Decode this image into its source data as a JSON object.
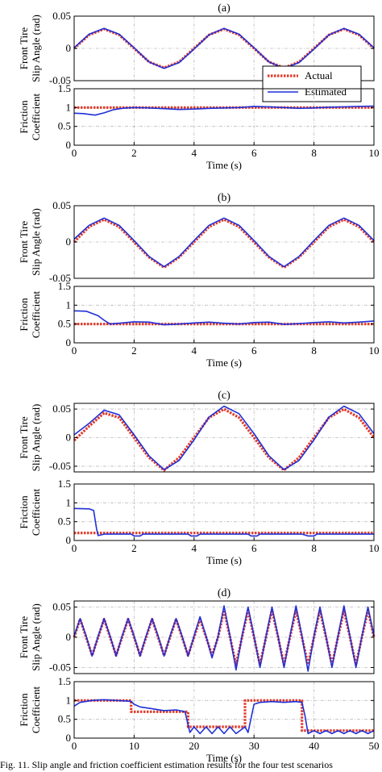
{
  "caption": "Fig. 11. Slip angle and friction coefficient estimation results for the four test scenarios",
  "colors": {
    "actual": "#e03c2c",
    "estimated": "#1f2fd8",
    "grid": "#bdbdbd"
  },
  "chart_data": [
    {
      "id": "a",
      "type": "line",
      "title": "(a)",
      "ylabel": [
        "Front Tire",
        "Slip Angle (rad)"
      ],
      "xlim": [
        0,
        10
      ],
      "ylim": [
        -0.05,
        0.05
      ],
      "yticks": [
        0.05,
        0,
        -0.05
      ],
      "yticklabels": [
        "0.05",
        "0",
        "-0.05"
      ],
      "legend": {
        "position": "bottom-right",
        "entries": [
          "Actual",
          "Estimated"
        ]
      },
      "series": [
        {
          "name": "Actual",
          "x": [
            0,
            0.5,
            1,
            1.5,
            2,
            2.5,
            3,
            3.5,
            4,
            4.5,
            5,
            5.5,
            6,
            6.5,
            7,
            7.5,
            8,
            8.5,
            9,
            9.5,
            10
          ],
          "y": [
            0,
            0.021,
            0.03,
            0.021,
            0,
            -0.021,
            -0.03,
            -0.021,
            0,
            0.021,
            0.03,
            0.021,
            0,
            -0.021,
            -0.03,
            -0.021,
            0,
            0.021,
            0.03,
            0.021,
            0
          ]
        },
        {
          "name": "Estimated",
          "x": [
            0,
            0.5,
            1,
            1.5,
            2,
            2.5,
            3,
            3.5,
            4,
            4.5,
            5,
            5.5,
            6,
            6.5,
            7,
            7.5,
            8,
            8.5,
            9,
            9.5,
            10
          ],
          "y": [
            0.001,
            0.022,
            0.031,
            0.022,
            0.001,
            -0.021,
            -0.031,
            -0.022,
            -0.001,
            0.021,
            0.031,
            0.022,
            0.001,
            -0.021,
            -0.031,
            -0.022,
            -0.001,
            0.021,
            0.031,
            0.022,
            0.001
          ]
        }
      ]
    },
    {
      "id": "a2",
      "type": "line",
      "ylabel": [
        "Friction",
        "Coefficient"
      ],
      "xlabel": "Time (s)",
      "xlim": [
        0,
        10
      ],
      "ylim": [
        0,
        1.5
      ],
      "yticks": [
        1.5,
        1,
        0.5,
        0
      ],
      "yticklabels": [
        "1.5",
        "1",
        "0.5",
        "0"
      ],
      "xticks": [
        0,
        2,
        4,
        6,
        8,
        10
      ],
      "xticklabels": [
        "0",
        "2",
        "4",
        "6",
        "8",
        "10"
      ],
      "series": [
        {
          "name": "Actual",
          "x": [
            0,
            10
          ],
          "y": [
            1,
            1
          ]
        },
        {
          "name": "Estimated",
          "x": [
            0,
            0.3,
            0.7,
            1,
            1.3,
            1.6,
            2,
            2.5,
            3,
            3.5,
            4,
            4.5,
            5,
            5.5,
            6,
            6.5,
            7,
            7.5,
            8,
            8.5,
            9,
            9.5,
            10
          ],
          "y": [
            0.85,
            0.84,
            0.8,
            0.86,
            0.94,
            0.98,
            1.0,
            0.99,
            0.97,
            0.95,
            0.96,
            0.98,
            0.99,
            1.0,
            1.03,
            1.02,
            1.0,
            0.98,
            0.99,
            1.01,
            1.02,
            1.03,
            1.04
          ]
        }
      ]
    },
    {
      "id": "b",
      "type": "line",
      "title": "(b)",
      "ylabel": [
        "Front Tire",
        "Slip Angle (rad)"
      ],
      "xlim": [
        0,
        10
      ],
      "ylim": [
        -0.05,
        0.05
      ],
      "yticks": [
        0.05,
        0,
        -0.05
      ],
      "yticklabels": [
        "0.05",
        "0",
        "-0.05"
      ],
      "series": [
        {
          "name": "Actual",
          "x": [
            0,
            0.5,
            1,
            1.5,
            2,
            2.5,
            3,
            3.5,
            4,
            4.5,
            5,
            5.5,
            6,
            6.5,
            7,
            7.5,
            8,
            8.5,
            9,
            9.5,
            10
          ],
          "y": [
            0,
            0.021,
            0.031,
            0.021,
            0,
            -0.021,
            -0.035,
            -0.021,
            0,
            0.021,
            0.031,
            0.021,
            0,
            -0.021,
            -0.035,
            -0.021,
            0,
            0.021,
            0.031,
            0.021,
            0
          ]
        },
        {
          "name": "Estimated",
          "x": [
            0,
            0.5,
            1,
            1.5,
            2,
            2.5,
            3,
            3.5,
            4,
            4.5,
            5,
            5.5,
            6,
            6.5,
            7,
            7.5,
            8,
            8.5,
            9,
            9.5,
            10
          ],
          "y": [
            0.004,
            0.023,
            0.033,
            0.023,
            0.002,
            -0.02,
            -0.034,
            -0.02,
            0.002,
            0.023,
            0.033,
            0.023,
            0.002,
            -0.02,
            -0.034,
            -0.02,
            0.002,
            0.023,
            0.033,
            0.023,
            0.002
          ]
        }
      ]
    },
    {
      "id": "b2",
      "type": "line",
      "ylabel": [
        "Friction",
        "Coefficient"
      ],
      "xlabel": "Time (s)",
      "xlim": [
        0,
        10
      ],
      "ylim": [
        0,
        1.5
      ],
      "yticks": [
        1.5,
        1,
        0.5,
        0
      ],
      "yticklabels": [
        "1.5",
        "1",
        "0.5",
        "0"
      ],
      "xticks": [
        0,
        2,
        4,
        6,
        8,
        10
      ],
      "xticklabels": [
        "0",
        "2",
        "4",
        "6",
        "8",
        "10"
      ],
      "series": [
        {
          "name": "Actual",
          "x": [
            0,
            10
          ],
          "y": [
            0.5,
            0.5
          ]
        },
        {
          "name": "Estimated",
          "x": [
            0,
            0.4,
            0.8,
            1.0,
            1.2,
            1.5,
            2,
            2.5,
            3,
            3.5,
            4,
            4.5,
            5,
            5.5,
            6,
            6.5,
            7,
            7.5,
            8,
            8.5,
            9,
            9.5,
            10
          ],
          "y": [
            0.85,
            0.84,
            0.72,
            0.6,
            0.5,
            0.52,
            0.56,
            0.55,
            0.48,
            0.5,
            0.53,
            0.55,
            0.52,
            0.5,
            0.54,
            0.55,
            0.49,
            0.51,
            0.54,
            0.56,
            0.53,
            0.55,
            0.58
          ]
        }
      ]
    },
    {
      "id": "c",
      "type": "line",
      "title": "(c)",
      "ylabel": [
        "Front Tire",
        "Slip Angle (rad)"
      ],
      "xlim": [
        0,
        10
      ],
      "ylim": [
        -0.06,
        0.06
      ],
      "yticks": [
        0.05,
        0,
        -0.05
      ],
      "yticklabels": [
        "0.05",
        "0",
        "-0.05"
      ],
      "series": [
        {
          "name": "Actual",
          "x": [
            0,
            0.5,
            1,
            1.5,
            2,
            2.5,
            3,
            3.5,
            4,
            4.5,
            5,
            5.5,
            6,
            6.5,
            7,
            7.5,
            8,
            8.5,
            9,
            9.5,
            10
          ],
          "y": [
            -0.005,
            0.02,
            0.043,
            0.035,
            0,
            -0.035,
            -0.057,
            -0.035,
            0,
            0.035,
            0.05,
            0.035,
            0,
            -0.035,
            -0.057,
            -0.035,
            0,
            0.035,
            0.05,
            0.035,
            0
          ]
        },
        {
          "name": "Estimated",
          "x": [
            0,
            0.5,
            1,
            1.5,
            2,
            2.5,
            3,
            3.5,
            4,
            4.5,
            5,
            5.5,
            6,
            6.5,
            7,
            7.5,
            8,
            8.5,
            9,
            9.5,
            10
          ],
          "y": [
            0.005,
            0.025,
            0.048,
            0.04,
            0.005,
            -0.032,
            -0.056,
            -0.04,
            -0.004,
            0.036,
            0.055,
            0.042,
            0.007,
            -0.032,
            -0.056,
            -0.04,
            -0.004,
            0.036,
            0.055,
            0.042,
            0.007
          ]
        }
      ]
    },
    {
      "id": "c2",
      "type": "line",
      "ylabel": [
        "Friction",
        "Coefficient"
      ],
      "xlabel": "Time (s)",
      "xlim": [
        0,
        10
      ],
      "ylim": [
        0,
        1.5
      ],
      "yticks": [
        1.5,
        1,
        0.5,
        0
      ],
      "yticklabels": [
        "1.5",
        "1",
        "0.5",
        "0"
      ],
      "xticks": [
        0,
        2,
        4,
        6,
        8,
        10
      ],
      "xticklabels": [
        "0",
        "2",
        "4",
        "6",
        "8",
        "10"
      ],
      "series": [
        {
          "name": "Actual",
          "x": [
            0,
            10
          ],
          "y": [
            0.2,
            0.2
          ]
        },
        {
          "name": "Estimated",
          "x": [
            0,
            0.5,
            0.65,
            0.75,
            0.8,
            1,
            1.9,
            2,
            2.2,
            2.3,
            3.8,
            3.9,
            4.1,
            4.2,
            5.8,
            5.9,
            6.1,
            6.2,
            7.6,
            7.8,
            8,
            8.1,
            10
          ],
          "y": [
            0.85,
            0.84,
            0.8,
            0.3,
            0.13,
            0.17,
            0.17,
            0.12,
            0.12,
            0.17,
            0.17,
            0.12,
            0.12,
            0.17,
            0.17,
            0.12,
            0.12,
            0.17,
            0.17,
            0.12,
            0.12,
            0.17,
            0.17
          ]
        }
      ]
    },
    {
      "id": "d",
      "type": "line",
      "title": "(d)",
      "ylabel": [
        "Front Tire",
        "Slip Angle (rad)"
      ],
      "xlim": [
        0,
        50
      ],
      "ylim": [
        -0.06,
        0.06
      ],
      "yticks": [
        0.05,
        0,
        -0.05
      ],
      "yticklabels": [
        "0.05",
        "0",
        "-0.05"
      ],
      "series": [
        {
          "name": "Actual",
          "x": [
            0,
            1,
            2,
            3,
            4,
            5,
            6,
            7,
            8,
            9,
            10,
            11,
            12,
            13,
            14,
            15,
            16,
            17,
            18,
            19,
            20,
            21,
            22,
            23,
            24,
            25,
            26,
            27,
            28,
            29,
            30,
            31,
            32,
            33,
            34,
            35,
            36,
            37,
            38,
            39,
            40,
            41,
            42,
            43,
            44,
            45,
            46,
            47,
            48,
            49,
            50
          ],
          "y": [
            0,
            0.03,
            0,
            -0.03,
            0,
            0.03,
            0,
            -0.03,
            0,
            0.03,
            0,
            -0.03,
            0,
            0.03,
            0,
            -0.03,
            0,
            0.03,
            0,
            -0.03,
            0,
            0.03,
            0,
            -0.03,
            0,
            0.045,
            0,
            -0.045,
            0,
            0.045,
            0,
            -0.045,
            0,
            0.045,
            0,
            -0.045,
            0,
            0.045,
            0,
            -0.045,
            0,
            0.045,
            0,
            -0.045,
            0,
            0.045,
            0,
            -0.045,
            0,
            0.045,
            0
          ]
        },
        {
          "name": "Estimated",
          "x": [
            0,
            1,
            2,
            3,
            4,
            5,
            6,
            7,
            8,
            9,
            10,
            11,
            12,
            13,
            14,
            15,
            16,
            17,
            18,
            19,
            20,
            21,
            22,
            23,
            24,
            25,
            26,
            27,
            28,
            29,
            30,
            31,
            32,
            33,
            34,
            35,
            36,
            37,
            38,
            39,
            40,
            41,
            42,
            43,
            44,
            45,
            46,
            47,
            48,
            49,
            50
          ],
          "y": [
            0.002,
            0.031,
            0.002,
            -0.031,
            0.002,
            0.031,
            0.002,
            -0.031,
            0.002,
            0.031,
            0.002,
            -0.031,
            0.002,
            0.031,
            0.002,
            -0.031,
            0.002,
            0.031,
            0.002,
            -0.031,
            0.002,
            0.034,
            0.002,
            -0.034,
            0.002,
            0.052,
            0.002,
            -0.054,
            0.002,
            0.05,
            0.002,
            -0.05,
            0.002,
            0.05,
            0.002,
            -0.05,
            0.002,
            0.052,
            0.002,
            -0.056,
            0.002,
            0.05,
            0.002,
            -0.05,
            0.002,
            0.052,
            0.002,
            -0.05,
            0.002,
            0.05,
            0.002
          ]
        }
      ]
    },
    {
      "id": "d2",
      "type": "line",
      "ylabel": [
        "Friction",
        "Coefficient"
      ],
      "xlabel": "Time (s)",
      "xlim": [
        0,
        50
      ],
      "ylim": [
        0,
        1.5
      ],
      "yticks": [
        1.5,
        1,
        0.5,
        0
      ],
      "yticklabels": [
        "1.5",
        "1",
        "0.5",
        "0"
      ],
      "xticks": [
        0,
        10,
        20,
        30,
        40,
        50
      ],
      "xticklabels": [
        "0",
        "10",
        "20",
        "30",
        "40",
        "50"
      ],
      "series": [
        {
          "name": "Actual",
          "x": [
            0,
            9.5,
            9.5,
            19,
            19,
            28.5,
            28.5,
            38,
            38,
            50
          ],
          "y": [
            1,
            1,
            0.7,
            0.7,
            0.3,
            0.3,
            1,
            1,
            0.2,
            0.2
          ]
        },
        {
          "name": "Estimated",
          "x": [
            0,
            1,
            3,
            5,
            7,
            9.5,
            10,
            11,
            13,
            15,
            17,
            18.5,
            19,
            19.3,
            20,
            21,
            22,
            23,
            24,
            25,
            26,
            27,
            28.5,
            29,
            30,
            31,
            33,
            35,
            37,
            38,
            38.5,
            39,
            40,
            41,
            42,
            43,
            44,
            45,
            46,
            47,
            48,
            49,
            50
          ],
          "y": [
            0.85,
            0.95,
            1.0,
            1.02,
            1.0,
            0.98,
            0.9,
            0.83,
            0.78,
            0.73,
            0.75,
            0.7,
            0.35,
            0.15,
            0.3,
            0.12,
            0.3,
            0.12,
            0.3,
            0.12,
            0.3,
            0.12,
            0.3,
            0.15,
            0.9,
            0.95,
            0.97,
            0.95,
            0.97,
            0.95,
            0.6,
            0.12,
            0.2,
            0.12,
            0.2,
            0.12,
            0.2,
            0.12,
            0.2,
            0.12,
            0.2,
            0.12,
            0.2
          ]
        }
      ]
    }
  ]
}
